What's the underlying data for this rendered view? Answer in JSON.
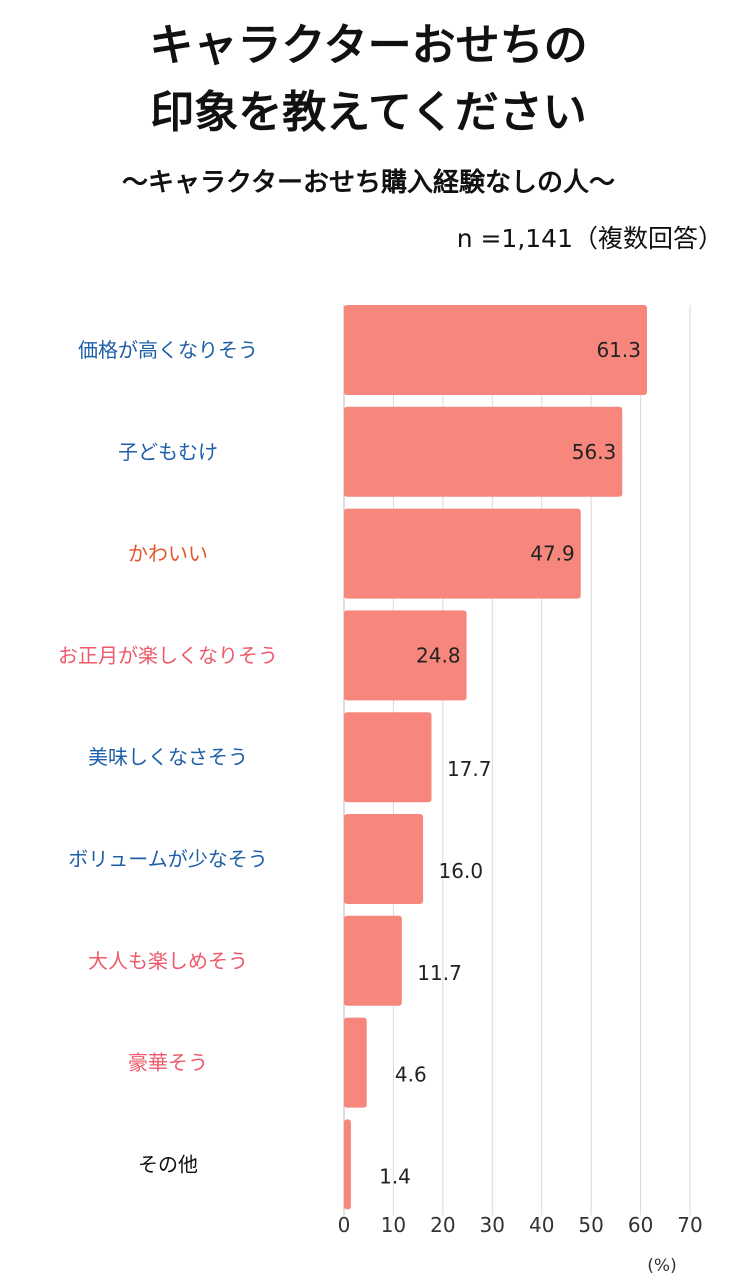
{
  "header": {
    "title_line1": "キャラクターおせちの",
    "title_line2": "印象を教えてください",
    "subtitle": "〜キャラクターおせち購入経験なしの人〜",
    "sample": "n =1,141（複数回答）"
  },
  "chart_data": {
    "type": "bar",
    "orientation": "horizontal",
    "categories": [
      "価格が高くなりそう",
      "子どもむけ",
      "かわいい",
      "お正月が楽しくなりそう",
      "美味しくなさそう",
      "ボリュームが少なそう",
      "大人も楽しめそう",
      "豪華そう",
      "その他"
    ],
    "values": [
      61.3,
      56.3,
      47.9,
      24.8,
      17.7,
      16.0,
      11.7,
      4.6,
      1.4
    ],
    "value_labels": [
      "61.3",
      "56.3",
      "47.9",
      "24.8",
      "17.7",
      "16.0",
      "11.7",
      "4.6",
      "1.4"
    ],
    "label_colors": [
      "#1f5fa8",
      "#1f5fa8",
      "#e4572e",
      "#ee5a6a",
      "#1f5fa8",
      "#1f5fa8",
      "#ee5a6a",
      "#ee5a6a",
      "#111111"
    ],
    "bar_color": "#f7877c",
    "xlim": [
      0,
      70
    ],
    "xticks": [
      "0",
      "10",
      "20",
      "30",
      "40",
      "50",
      "60",
      "70"
    ],
    "unit_label": "(%)",
    "grid": true
  }
}
